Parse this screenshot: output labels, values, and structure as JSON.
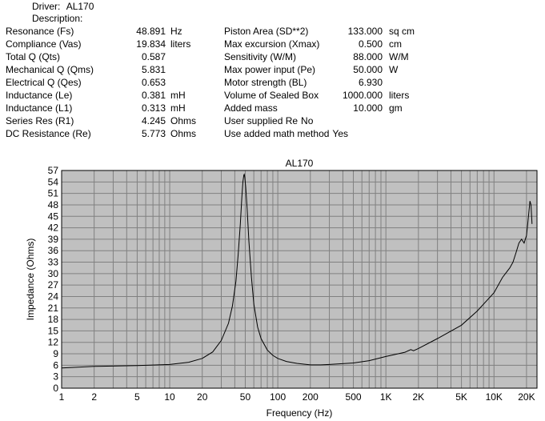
{
  "driver": {
    "label": "Driver:",
    "name": "AL170",
    "description_label": "Description:"
  },
  "params_left": [
    {
      "label": "Resonance (Fs)",
      "value": "48.891",
      "unit": "Hz"
    },
    {
      "label": "Compliance (Vas)",
      "value": "19.834",
      "unit": "liters"
    },
    {
      "label": "Total Q (Qts)",
      "value": "0.587",
      "unit": ""
    },
    {
      "label": "Mechanical Q (Qms)",
      "value": "5.831",
      "unit": ""
    },
    {
      "label": "Electrical Q (Qes)",
      "value": "0.653",
      "unit": ""
    },
    {
      "label": "Inductance (Le)",
      "value": "0.381",
      "unit": "mH"
    },
    {
      "label": "Inductance (L1)",
      "value": "0.313",
      "unit": "mH"
    },
    {
      "label": "Series Res (R1)",
      "value": "4.245",
      "unit": "Ohms"
    },
    {
      "label": "DC Resistance (Re)",
      "value": "5.773",
      "unit": "Ohms"
    }
  ],
  "params_right": [
    {
      "label": "Piston Area (SD**2)",
      "value": "133.000",
      "unit": "sq cm"
    },
    {
      "label": "Max excursion (Xmax)",
      "value": "0.500",
      "unit": "cm"
    },
    {
      "label": "Sensitivity (W/M)",
      "value": "88.000",
      "unit": "W/M"
    },
    {
      "label": "Max power input (Pe)",
      "value": "50.000",
      "unit": "W"
    },
    {
      "label": "Motor strength (BL)",
      "value": "6.930",
      "unit": ""
    },
    {
      "label": "Volume of Sealed Box",
      "value": "1000.000",
      "unit": "liters"
    },
    {
      "label": "Added mass",
      "value": "10.000",
      "unit": "gm"
    }
  ],
  "params_extra": [
    {
      "label": "User supplied Re",
      "value": "No"
    },
    {
      "label": "Use added math method",
      "value": "Yes"
    }
  ],
  "colors": {
    "plot_bg": "#c0c0c0",
    "grid": "#808080",
    "curve": "#000000"
  },
  "chart_data": {
    "type": "line",
    "title": "AL170",
    "xlabel": "Frequency (Hz)",
    "ylabel": "Impedance (Ohms)",
    "x_scale": "log",
    "xlim": [
      1,
      25000
    ],
    "ylim": [
      0,
      57
    ],
    "grid": true,
    "x_ticks": [
      {
        "value": 1,
        "label": "1"
      },
      {
        "value": 2,
        "label": "2"
      },
      {
        "value": 5,
        "label": "5"
      },
      {
        "value": 10,
        "label": "10"
      },
      {
        "value": 20,
        "label": "20"
      },
      {
        "value": 50,
        "label": "50"
      },
      {
        "value": 100,
        "label": "100"
      },
      {
        "value": 200,
        "label": "200"
      },
      {
        "value": 500,
        "label": "500"
      },
      {
        "value": 1000,
        "label": "1K"
      },
      {
        "value": 2000,
        "label": "2K"
      },
      {
        "value": 5000,
        "label": "5K"
      },
      {
        "value": 10000,
        "label": "10K"
      },
      {
        "value": 20000,
        "label": "20K"
      }
    ],
    "y_ticks": [
      0,
      3,
      6,
      9,
      12,
      15,
      18,
      21,
      24,
      27,
      30,
      33,
      36,
      39,
      42,
      45,
      48,
      51,
      54,
      57
    ],
    "series": [
      {
        "x": [
          1,
          2,
          5,
          10,
          15,
          20,
          25,
          30,
          35,
          38,
          41,
          43,
          45,
          46.5,
          47.5,
          48.5,
          48.9,
          49.5,
          50.5,
          52,
          54,
          57,
          60,
          65,
          70,
          80,
          90,
          100,
          120,
          150,
          200,
          250,
          300,
          500,
          700,
          1000,
          1500,
          1700,
          1800,
          2000,
          3000,
          5000,
          7000,
          10000,
          12000,
          14000,
          15000,
          16000,
          17000,
          18000,
          19000,
          20000,
          20500,
          21000,
          21500,
          22000,
          22500
        ],
        "y": [
          5.3,
          5.7,
          5.9,
          6.2,
          6.8,
          7.8,
          9.5,
          12.5,
          17.0,
          21.5,
          28.0,
          35.0,
          43.0,
          50.0,
          54.0,
          55.8,
          56.0,
          55.2,
          52.5,
          47.0,
          38.5,
          29.0,
          22.0,
          16.0,
          13.0,
          10.0,
          8.6,
          7.8,
          7.0,
          6.5,
          6.1,
          6.1,
          6.2,
          6.6,
          7.2,
          8.3,
          9.4,
          10.1,
          9.8,
          10.4,
          13.0,
          16.5,
          20.2,
          25.0,
          29.0,
          31.5,
          33.0,
          35.5,
          38.0,
          39.0,
          38.0,
          40.0,
          43.0,
          46.0,
          49.0,
          48.0,
          43.0
        ]
      }
    ]
  }
}
